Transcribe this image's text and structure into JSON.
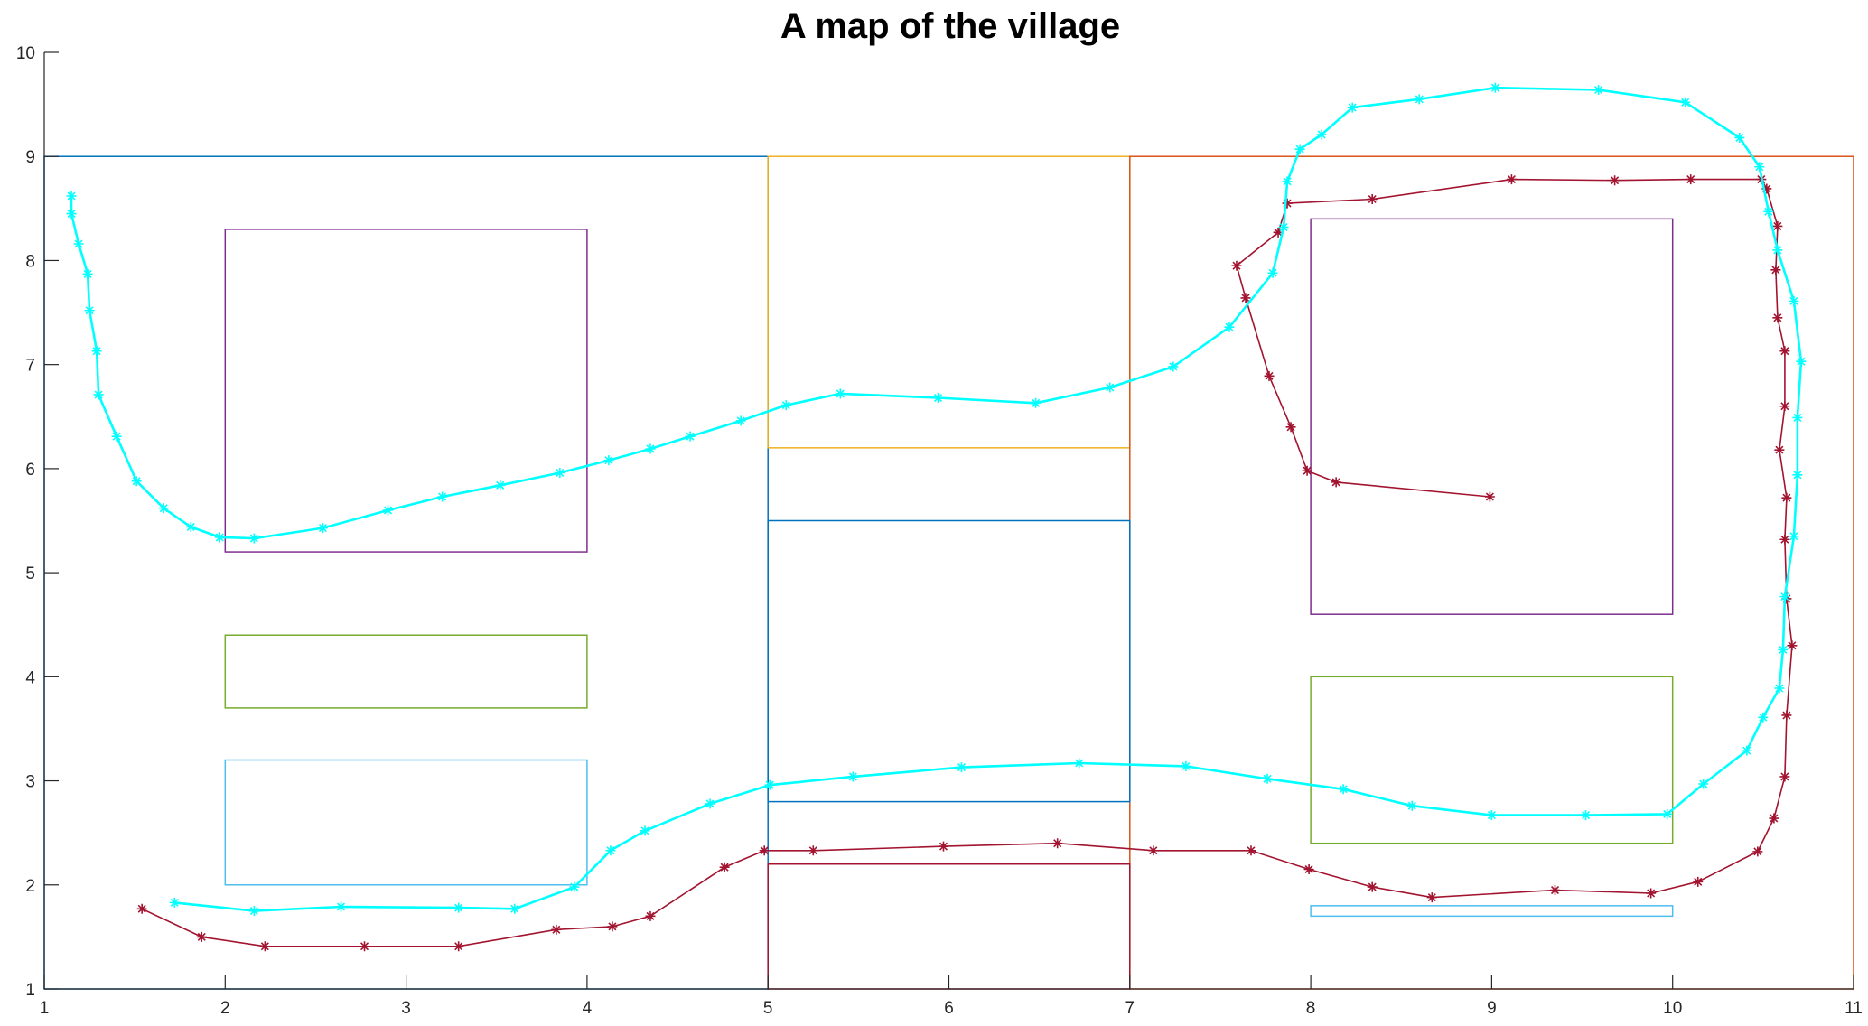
{
  "chart_data": {
    "type": "line",
    "title": "A map of the village",
    "xlabel": "",
    "ylabel": "",
    "xlim": [
      1,
      11
    ],
    "ylim": [
      1,
      10
    ],
    "xticks": [
      "1",
      "2",
      "3",
      "4",
      "5",
      "6",
      "7",
      "8",
      "9",
      "10",
      "11"
    ],
    "yticks": [
      "1",
      "2",
      "3",
      "4",
      "5",
      "6",
      "7",
      "8",
      "9",
      "10"
    ],
    "grid": false,
    "legend": "none",
    "rectangles": [
      {
        "x": [
          1,
          5
        ],
        "y": [
          1,
          9
        ],
        "color": "#0072BD"
      },
      {
        "x": [
          5,
          7
        ],
        "y": [
          6.2,
          9
        ],
        "color": "#EDB120"
      },
      {
        "x": [
          7,
          11
        ],
        "y": [
          1,
          9
        ],
        "color": "#D95319"
      },
      {
        "x": [
          2,
          4
        ],
        "y": [
          5.2,
          8.3
        ],
        "color": "#7E2F8E"
      },
      {
        "x": [
          2,
          4
        ],
        "y": [
          3.7,
          4.4
        ],
        "color": "#77AC30"
      },
      {
        "x": [
          2,
          4
        ],
        "y": [
          2,
          3.2
        ],
        "color": "#4DBEEE"
      },
      {
        "x": [
          5,
          7
        ],
        "y": [
          2.8,
          5.5
        ],
        "color": "#0072BD"
      },
      {
        "x": [
          5,
          7
        ],
        "y": [
          1,
          2.2
        ],
        "color": "#A2142F"
      },
      {
        "x": [
          8,
          10
        ],
        "y": [
          4.6,
          8.4
        ],
        "color": "#7E2F8E"
      },
      {
        "x": [
          8,
          10
        ],
        "y": [
          2.4,
          4.0
        ],
        "color": "#77AC30"
      },
      {
        "x": [
          8,
          10
        ],
        "y": [
          1.7,
          1.8
        ],
        "color": "#4DBEEE"
      }
    ],
    "series": [
      {
        "color": "#A2142F",
        "marker": "*",
        "x": [
          1.54,
          1.87,
          2.22,
          2.77,
          3.29,
          3.83,
          4.14,
          4.35,
          4.76,
          4.98,
          5.25,
          5.97,
          6.6,
          7.13,
          7.67,
          7.99,
          8.34,
          8.67,
          9.35,
          9.88,
          10.14,
          10.47,
          10.56,
          10.62,
          10.63,
          10.66,
          10.63,
          10.62,
          10.63,
          10.59,
          10.62,
          10.62,
          10.58,
          10.57,
          10.58,
          10.52,
          10.49,
          10.1,
          9.68,
          9.11,
          8.34,
          7.87,
          7.82,
          7.59,
          7.64,
          7.77,
          7.89,
          7.98,
          8.14,
          8.99
        ],
        "y": [
          1.77,
          1.5,
          1.41,
          1.41,
          1.41,
          1.57,
          1.6,
          1.7,
          2.17,
          2.33,
          2.33,
          2.37,
          2.4,
          2.33,
          2.33,
          2.15,
          1.98,
          1.88,
          1.95,
          1.92,
          2.03,
          2.32,
          2.64,
          3.04,
          3.63,
          4.3,
          4.75,
          5.32,
          5.72,
          6.18,
          6.6,
          7.13,
          7.45,
          7.91,
          8.33,
          8.69,
          8.78,
          8.78,
          8.77,
          8.78,
          8.59,
          8.55,
          8.27,
          7.95,
          7.64,
          6.89,
          6.4,
          5.98,
          5.87,
          5.73
        ]
      },
      {
        "color": "#00FFFF",
        "marker": "*",
        "x": [
          1.15,
          1.15,
          1.19,
          1.24,
          1.25,
          1.29,
          1.3,
          1.4,
          1.51,
          1.66,
          1.81,
          1.97,
          2.16,
          2.54,
          2.9,
          3.2,
          3.52,
          3.85,
          4.12,
          4.35,
          4.57,
          4.85,
          5.1,
          5.4,
          5.94,
          6.48,
          6.89,
          7.24,
          7.55,
          7.79,
          7.85,
          7.87,
          7.94,
          8.06,
          8.23,
          8.6,
          9.02,
          9.59,
          10.07,
          10.37,
          10.48,
          10.53,
          10.58,
          10.67,
          10.71,
          10.69,
          10.69,
          10.67,
          10.62,
          10.61,
          10.59,
          10.5,
          10.41,
          10.17,
          9.97,
          9.52,
          9.0,
          8.56,
          8.18,
          7.76,
          7.31,
          6.72,
          6.07,
          5.47,
          5.01,
          4.68,
          4.32,
          4.13,
          3.93,
          3.6,
          3.29,
          2.64,
          2.16,
          1.72
        ],
        "y": [
          8.62,
          8.45,
          8.16,
          7.87,
          7.52,
          7.13,
          6.71,
          6.31,
          5.88,
          5.62,
          5.44,
          5.34,
          5.33,
          5.43,
          5.6,
          5.73,
          5.84,
          5.96,
          6.08,
          6.19,
          6.31,
          6.46,
          6.61,
          6.72,
          6.68,
          6.63,
          6.78,
          6.98,
          7.36,
          7.88,
          8.32,
          8.76,
          9.07,
          9.21,
          9.47,
          9.55,
          9.66,
          9.64,
          9.52,
          9.18,
          8.9,
          8.47,
          8.1,
          7.61,
          7.03,
          6.49,
          5.94,
          5.35,
          4.77,
          4.26,
          3.89,
          3.61,
          3.29,
          2.97,
          2.68,
          2.67,
          2.67,
          2.76,
          2.92,
          3.02,
          3.14,
          3.17,
          3.13,
          3.04,
          2.96,
          2.78,
          2.52,
          2.33,
          1.98,
          1.77,
          1.78,
          1.79,
          1.75,
          1.83
        ]
      }
    ]
  }
}
